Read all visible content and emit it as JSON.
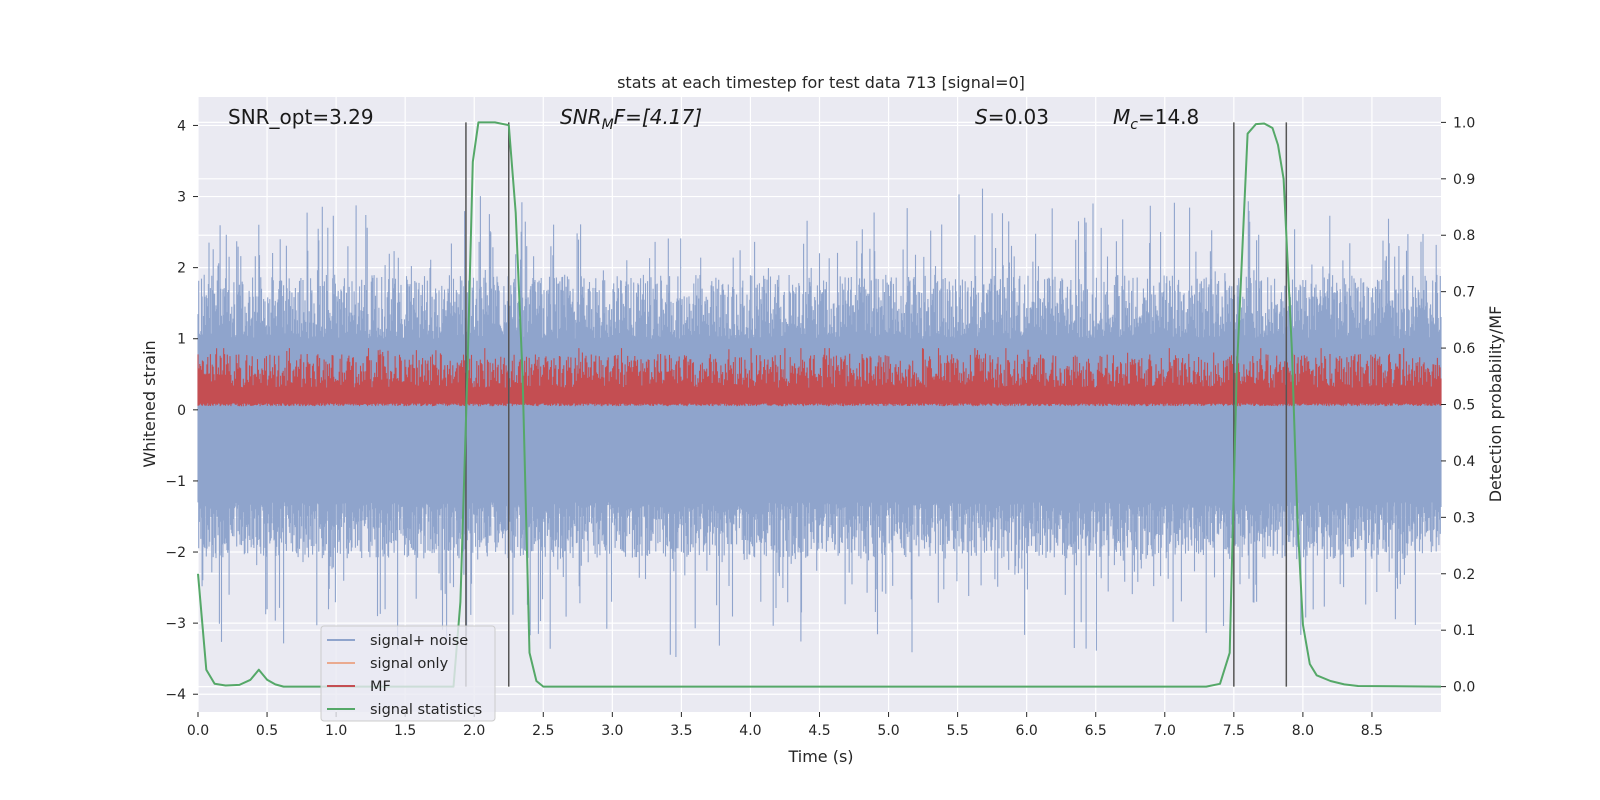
{
  "chart_data": {
    "type": "line",
    "title": "stats at each timestep for test data 713 [signal=0]",
    "xlabel": "Time (s)",
    "ylabel": "Whitened strain",
    "y2label": "Detection probability/MF",
    "xlim": [
      0.0,
      9.0
    ],
    "ylim": [
      -4.25,
      4.4
    ],
    "y2lim": [
      -0.045,
      1.045
    ],
    "xticks": [
      "0.0",
      "0.5",
      "1.0",
      "1.5",
      "2.0",
      "2.5",
      "3.0",
      "3.5",
      "4.0",
      "4.5",
      "5.0",
      "5.5",
      "6.0",
      "6.5",
      "7.0",
      "7.5",
      "8.0",
      "8.5"
    ],
    "yticks": [
      "4",
      "3",
      "2",
      "1",
      "0",
      "−1",
      "−2",
      "−3",
      "−4"
    ],
    "y2ticks": [
      "1.0",
      "0.9",
      "0.8",
      "0.7",
      "0.6",
      "0.5",
      "0.4",
      "0.3",
      "0.2",
      "0.1",
      "0.0"
    ],
    "annotations": {
      "snr_opt": "SNR_opt=3.29",
      "snr_mf_main": "SNR",
      "snr_mf_sub": "M",
      "snr_mf_rest": "F=[4.17]",
      "s_main": "S",
      "s_rest": "=0.03",
      "mc_main": "M",
      "mc_sub": "c",
      "mc_rest": "=14.8"
    },
    "legend_position": "lower-left",
    "series": [
      {
        "name": "signal+ noise",
        "color": "#8fa4cc",
        "envelope_upper": 1.0,
        "envelope_lower": -1.3,
        "peak_range": [
          -3.8,
          3.7
        ]
      },
      {
        "name": "signal only",
        "color": "#eaaa8f"
      },
      {
        "name": "MF",
        "color": "#c44e52",
        "baseline": 0.5,
        "peak_max": 0.6
      },
      {
        "name": "signal statistics",
        "color": "#55a868",
        "t": [
          0.0,
          0.06,
          0.12,
          0.2,
          0.3,
          0.38,
          0.44,
          0.5,
          0.56,
          0.62,
          1.85,
          1.9,
          1.95,
          1.99,
          2.03,
          2.15,
          2.25,
          2.3,
          2.35,
          2.4,
          2.45,
          2.5,
          7.3,
          7.4,
          7.47,
          7.52,
          7.6,
          7.66,
          7.72,
          7.78,
          7.82,
          7.86,
          7.92,
          7.96,
          8.0,
          8.05,
          8.1,
          8.2,
          8.3,
          8.4,
          9.0
        ],
        "p": [
          0.2,
          0.03,
          0.005,
          0.002,
          0.003,
          0.012,
          0.03,
          0.012,
          0.004,
          0.0,
          0.0,
          0.15,
          0.55,
          0.93,
          1.0,
          1.0,
          0.995,
          0.84,
          0.55,
          0.06,
          0.01,
          0.0,
          0.0,
          0.005,
          0.06,
          0.55,
          0.98,
          0.997,
          0.998,
          0.99,
          0.96,
          0.9,
          0.6,
          0.3,
          0.11,
          0.04,
          0.02,
          0.01,
          0.004,
          0.001,
          0.0
        ]
      }
    ],
    "vertical_markers": [
      1.94,
      2.25,
      7.5,
      7.88
    ]
  }
}
